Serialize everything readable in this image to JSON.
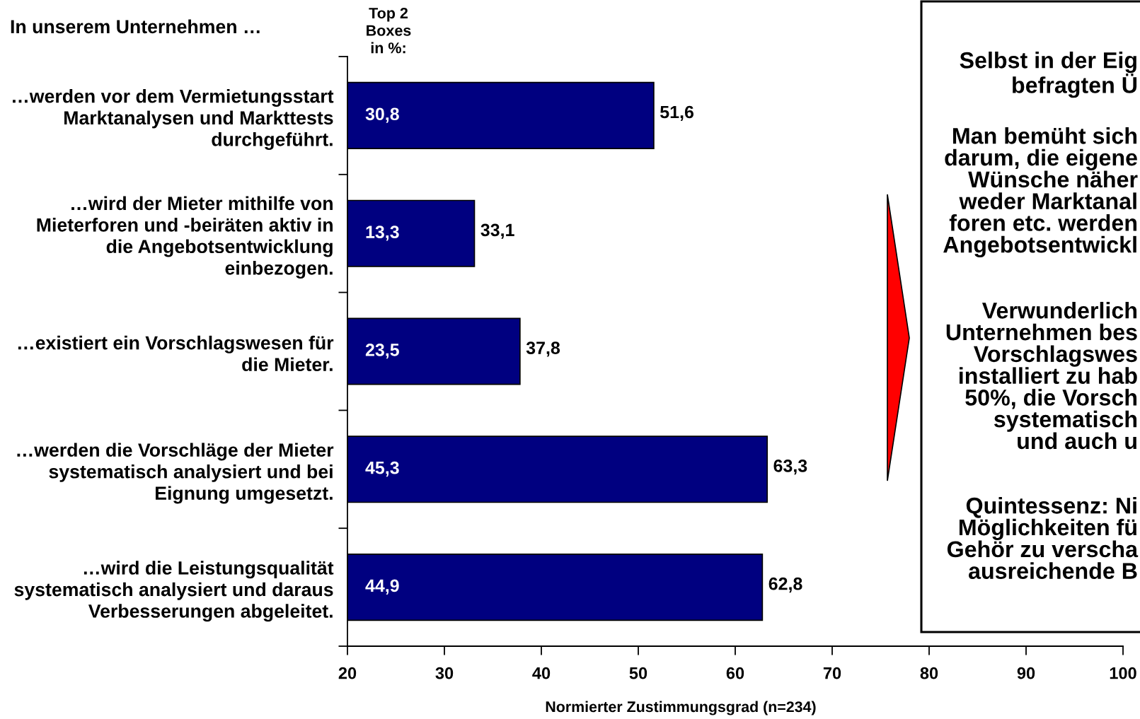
{
  "chart_data": {
    "type": "bar",
    "orientation": "horizontal",
    "title": "In unserem Unternehmen …",
    "categories": [
      "…werden vor dem Vermietungsstart\nMarktanalysen und Markttests\ndurchgeführt.",
      "…wird der Mieter mithilfe von\nMieterforen und -beiräten aktiv in\ndie Angebotsentwicklung\neinbezogen.",
      "…existiert ein Vorschlagswesen für\ndie Mieter.",
      "…werden die Vorschläge der Mieter\nsystematisch analysiert und bei\nEignung umgesetzt.",
      "…wird die Leistungsqualität\nsystematisch analysiert und daraus\nVerbesserungen abgeleitet."
    ],
    "values": [
      51.6,
      33.1,
      37.8,
      63.3,
      62.8
    ],
    "value_labels": [
      "51,6",
      "33,1",
      "37,8",
      "63,3",
      "62,8"
    ],
    "color": "#000080",
    "xlim": [
      20,
      100
    ],
    "xticks": [
      20,
      30,
      40,
      50,
      60,
      70,
      80,
      90,
      100
    ],
    "xlabel": "Normierter Zustimmungsgrad (n=234)",
    "grid": false,
    "annotations": [
      "Top 2\nBoxes\nin %:",
      "30,8",
      "13,3",
      "23,5",
      "45,3",
      "44,9",
      "Selbst in der Eig\nbefragten Ü",
      "Man bemüht sich\ndarum, die eigene\nWünsche näher\nweder Marktanal\nforen etc. werden\nAngebotsentwickl",
      "Verwunderlich\nUnternehmen bes\nVorschlagswes\ninstalliert zu hab\n50%, die Vorsch\nsystematisch\nund auch u",
      "Quintessenz: Ni\nMöglichkeiten fü\nGehör zu verscha\nausreichende B"
    ]
  }
}
